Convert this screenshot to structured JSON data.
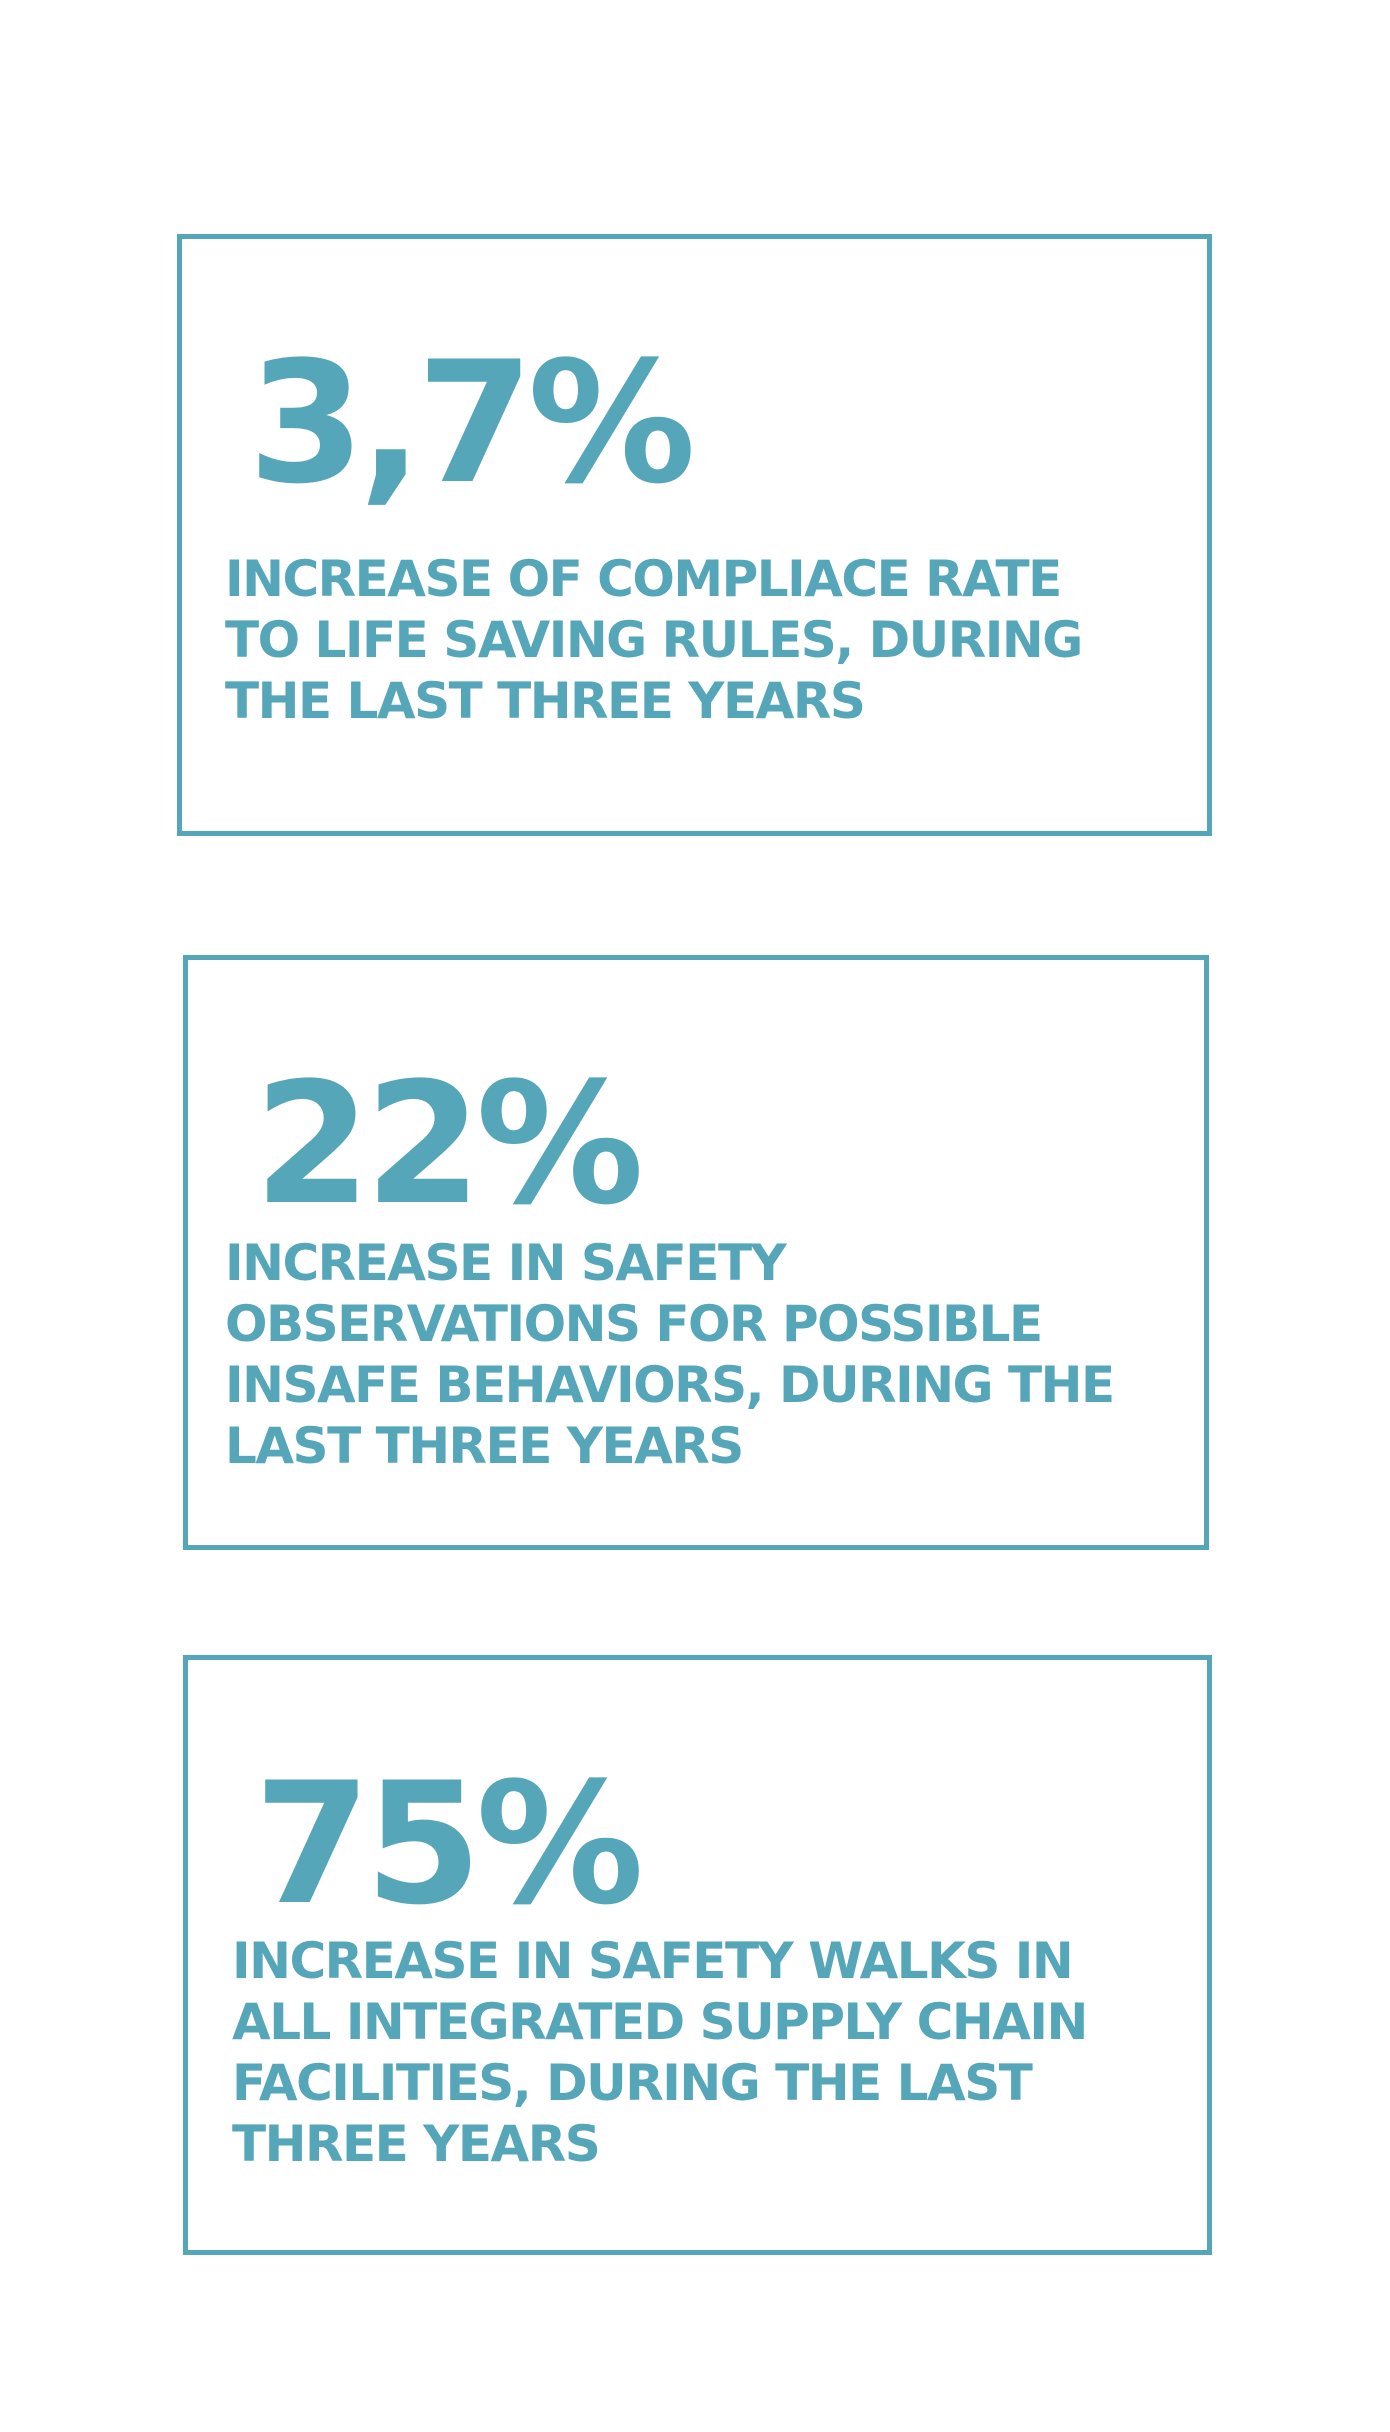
{
  "stats": [
    {
      "value": "3,7%",
      "description": "INCREASE OF COMPLIACE RATE\nTO LIFE SAVING RULES, DURING\nTHE LAST THREE YEARS"
    },
    {
      "value": "22%",
      "description": "INCREASE IN SAFETY\nOBSERVATIONS FOR POSSIBLE\nINSAFE BEHAVIORS, DURING THE\nLAST THREE YEARS"
    },
    {
      "value": "75%",
      "description": "INCREASE IN SAFETY WALKS IN\nALL INTEGRATED SUPPLY CHAIN\nFACILITIES, DURING THE LAST\nTHREE YEARS"
    }
  ],
  "colors": {
    "accent": "#55a6b8",
    "background": "#ffffff"
  }
}
